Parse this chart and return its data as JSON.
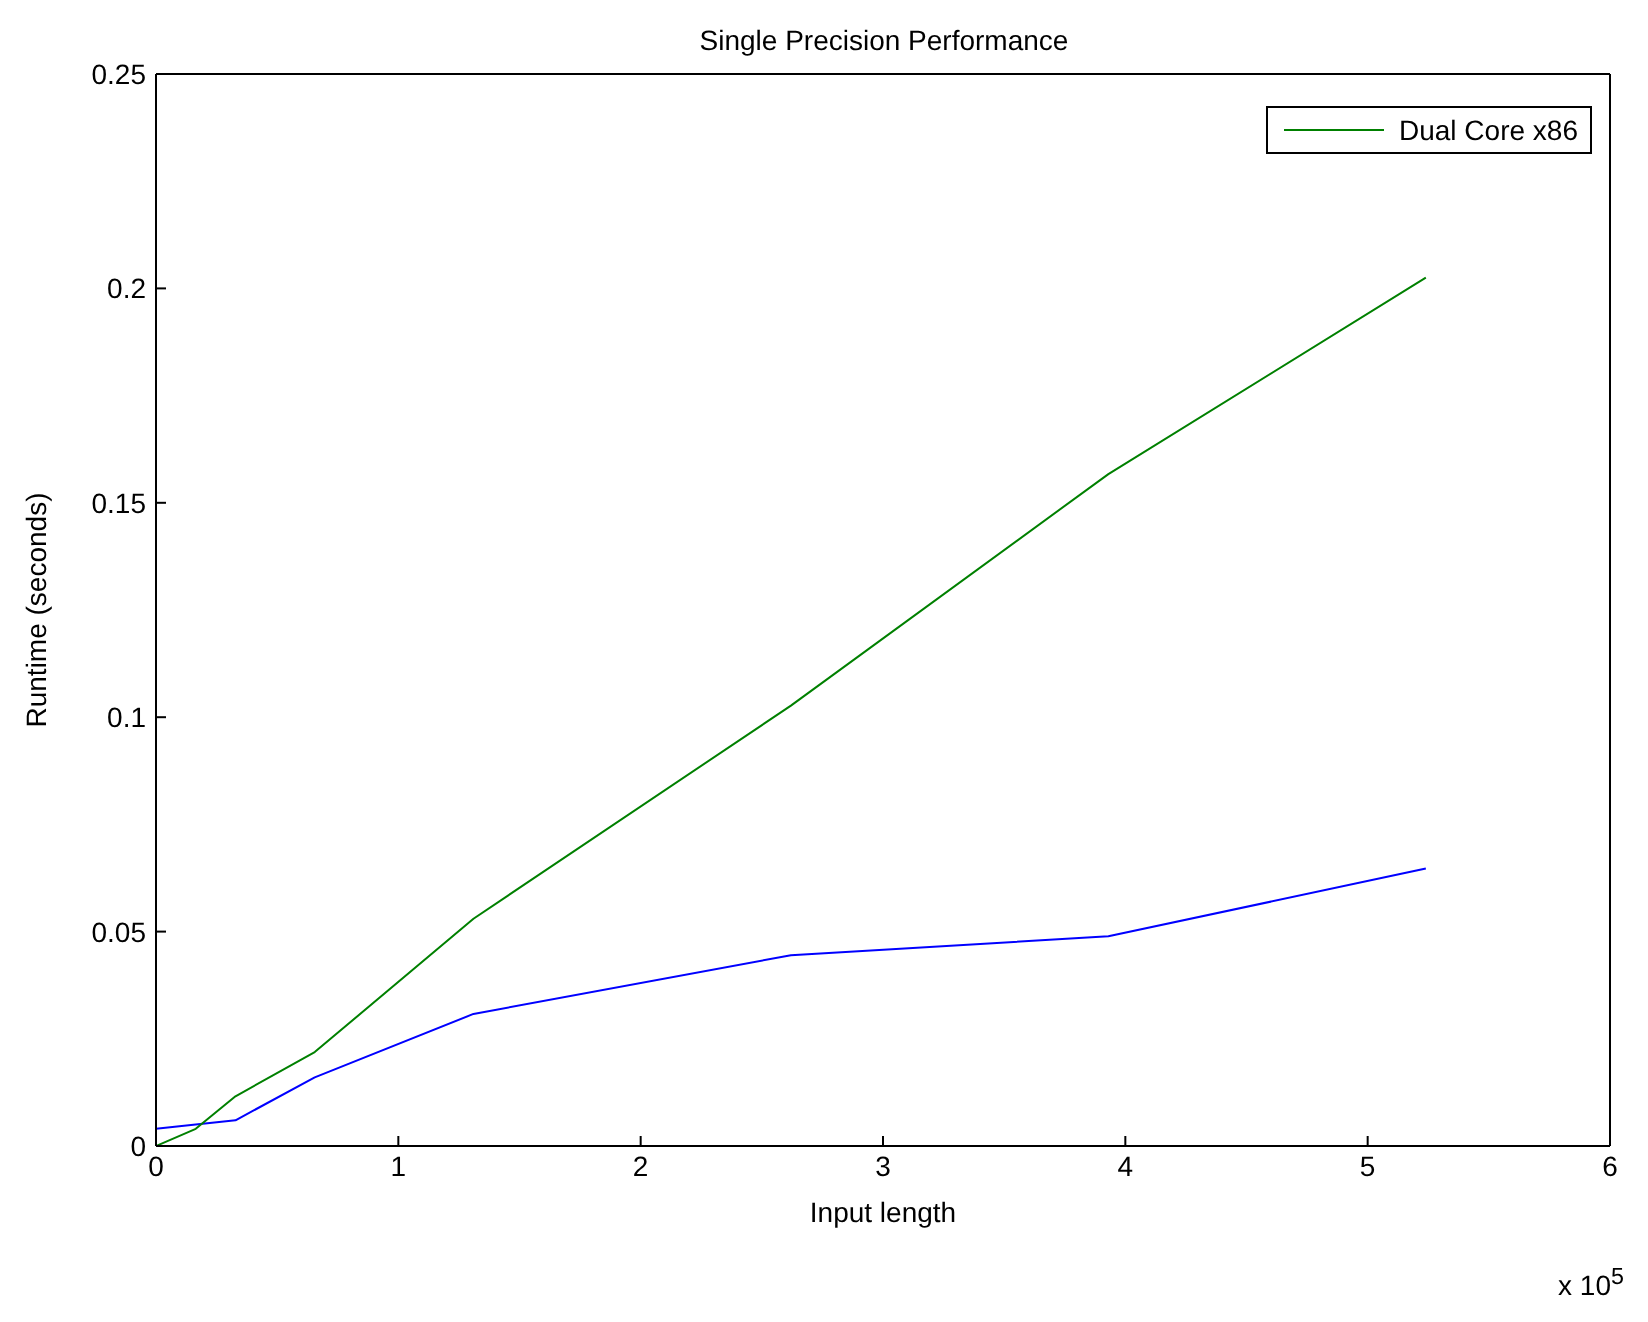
{
  "chart_data": {
    "type": "line",
    "title": "Single Precision Performance",
    "xlabel": "Input length",
    "ylabel": "Runtime (seconds)",
    "x": [
      0,
      0.164,
      0.328,
      0.655,
      1.31,
      2.62,
      3.93,
      5.24
    ],
    "series": [
      {
        "color": "#0000ff",
        "values": [
          0.004,
          0.005,
          0.006,
          0.016,
          0.0308,
          0.0445,
          0.0489,
          0.0647
        ]
      },
      {
        "name": "Dual Core x86",
        "color": "#008000",
        "values": [
          0,
          0.004,
          0.0116,
          0.0219,
          0.053,
          0.1027,
          0.1567,
          0.2025
        ]
      }
    ],
    "xlim": [
      0,
      6
    ],
    "xticks": [
      0,
      1,
      2,
      3,
      4,
      5,
      6
    ],
    "ylim": [
      0,
      0.25
    ],
    "yticks": [
      0,
      0.05,
      0.1,
      0.15,
      0.2,
      0.25
    ],
    "legend": "top right",
    "marker": "none",
    "line_style": "solid",
    "annotations": [
      "x 10$^{5}$"
    ]
  }
}
